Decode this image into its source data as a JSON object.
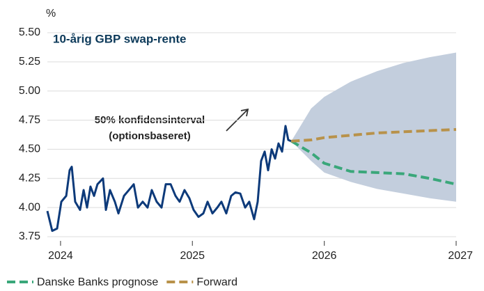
{
  "chart_data": {
    "type": "line",
    "title": "10-årig GBP swap-rente",
    "y_unit": "%",
    "annotation": [
      "50% konfidensinterval",
      "(optionsbaseret)"
    ],
    "xlim": [
      2023.9,
      2027
    ],
    "xticks": [
      2024,
      2025,
      2026,
      2027
    ],
    "ylim": [
      3.75,
      5.5
    ],
    "yticks": [
      3.75,
      {
        "value": 4.0,
        "label": "4.00"
      },
      4.25,
      {
        "value": 4.5,
        "label": "4.50"
      },
      4.75,
      {
        "value": 5.0,
        "label": "5.00"
      },
      5.25,
      {
        "value": 5.5,
        "label": "5.50"
      }
    ],
    "grid": true,
    "legend": "bottom",
    "band": {
      "color": "#c3cedd",
      "x": [
        2025.75,
        2025.9,
        2026.0,
        2026.2,
        2026.4,
        2026.6,
        2026.8,
        2027.0
      ],
      "upper": [
        4.57,
        4.85,
        4.95,
        5.08,
        5.17,
        5.24,
        5.29,
        5.33
      ],
      "lower": [
        4.57,
        4.4,
        4.3,
        4.22,
        4.16,
        4.12,
        4.08,
        4.05
      ]
    },
    "series": [
      {
        "color": "#0d3a7a",
        "dash": false,
        "x": [
          2023.9,
          2023.937,
          2023.974,
          2024.006,
          2024.043,
          2024.069,
          2024.085,
          2024.111,
          2024.148,
          2024.175,
          2024.201,
          2024.227,
          2024.254,
          2024.28,
          2024.322,
          2024.344,
          2024.375,
          2024.412,
          2024.439,
          2024.481,
          2024.518,
          2024.555,
          2024.587,
          2024.623,
          2024.66,
          2024.692,
          2024.729,
          2024.766,
          2024.798,
          2024.835,
          2024.872,
          2024.903,
          2024.94,
          2024.977,
          2025.009,
          2025.046,
          2025.083,
          2025.115,
          2025.152,
          2025.189,
          2025.22,
          2025.257,
          2025.294,
          2025.326,
          2025.363,
          2025.4,
          2025.431,
          2025.468,
          2025.495,
          2025.521,
          2025.548,
          2025.574,
          2025.601,
          2025.627,
          2025.653,
          2025.68,
          2025.706,
          2025.727,
          2025.748
        ],
        "values": [
          3.97,
          3.8,
          3.82,
          4.05,
          4.1,
          4.32,
          4.35,
          4.05,
          3.98,
          4.15,
          4.0,
          4.18,
          4.1,
          4.2,
          4.25,
          3.98,
          4.15,
          4.05,
          3.95,
          4.1,
          4.15,
          4.2,
          4.0,
          4.05,
          4.0,
          4.15,
          4.05,
          4.0,
          4.2,
          4.2,
          4.1,
          4.05,
          4.15,
          4.08,
          3.98,
          3.92,
          3.95,
          4.05,
          3.95,
          4.0,
          4.05,
          3.95,
          4.1,
          4.13,
          4.12,
          4.0,
          4.05,
          3.9,
          4.05,
          4.4,
          4.48,
          4.32,
          4.5,
          4.42,
          4.55,
          4.48,
          4.7,
          4.58,
          4.57
        ]
      },
      {
        "name": "Danske Banks prognose",
        "color": "#3aa77a",
        "dash": true,
        "x": [
          2025.75,
          2025.9,
          2026.0,
          2026.2,
          2026.4,
          2026.6,
          2026.8,
          2027.0
        ],
        "values": [
          4.57,
          4.47,
          4.38,
          4.31,
          4.3,
          4.29,
          4.25,
          4.2
        ]
      },
      {
        "name": "Forward",
        "color": "#b8924a",
        "dash": true,
        "x": [
          2025.75,
          2025.9,
          2026.0,
          2026.2,
          2026.4,
          2026.6,
          2026.8,
          2027.0
        ],
        "values": [
          4.57,
          4.58,
          4.6,
          4.62,
          4.64,
          4.65,
          4.66,
          4.67
        ]
      }
    ]
  }
}
